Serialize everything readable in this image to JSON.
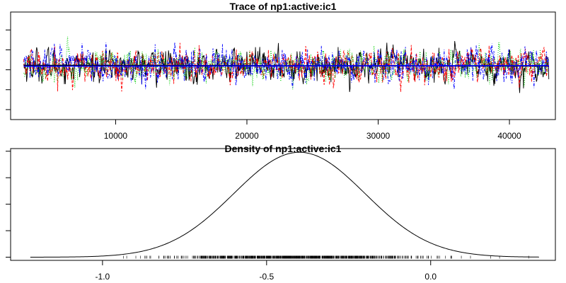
{
  "chart_data": [
    {
      "type": "line",
      "title": "Trace of np1:active:ic1",
      "xlabel": "",
      "ylabel": "",
      "xlim": [
        2000,
        43500
      ],
      "ylim": [
        -1.75,
        0.95
      ],
      "x_ticks": [
        10000,
        20000,
        30000,
        40000
      ],
      "x_tick_labels": [
        "10000",
        "20000",
        "30000",
        "40000"
      ],
      "y_ticks": [
        -1.5,
        -1.0,
        -0.5,
        0.0,
        0.5
      ],
      "chain_x_range": [
        3000,
        43000
      ],
      "series": [
        {
          "color": "#000000",
          "linestyle": "solid",
          "mean": -0.4,
          "sd": 0.2
        },
        {
          "color": "#ff0000",
          "linestyle": "dashed",
          "mean": -0.4,
          "sd": 0.2
        },
        {
          "color": "#00cd00",
          "linestyle": "dotted",
          "mean": -0.4,
          "sd": 0.2
        },
        {
          "color": "#0000ff",
          "linestyle": "dotdash",
          "mean": -0.4,
          "sd": 0.2
        }
      ],
      "smooth_lines": {
        "colors": [
          "#000000",
          "#0000ff"
        ],
        "y": -0.4
      },
      "grid": false
    },
    {
      "type": "line",
      "title": "Density of np1:active:ic1",
      "xlabel": "",
      "ylabel": "",
      "xlim": [
        -1.28,
        0.38
      ],
      "ylim": [
        -0.06,
        2.05
      ],
      "x_ticks": [
        -1.0,
        -0.5,
        0.0
      ],
      "x_tick_labels": [
        "-1.0",
        "-0.5",
        "0.0"
      ],
      "y_ticks": [
        0.0,
        0.5,
        1.0,
        1.5,
        2.0
      ],
      "density": {
        "mode": -0.4,
        "peak": 1.98,
        "sd": 0.2,
        "x_range": [
          -1.22,
          0.33
        ],
        "rug": true
      },
      "grid": false
    }
  ]
}
